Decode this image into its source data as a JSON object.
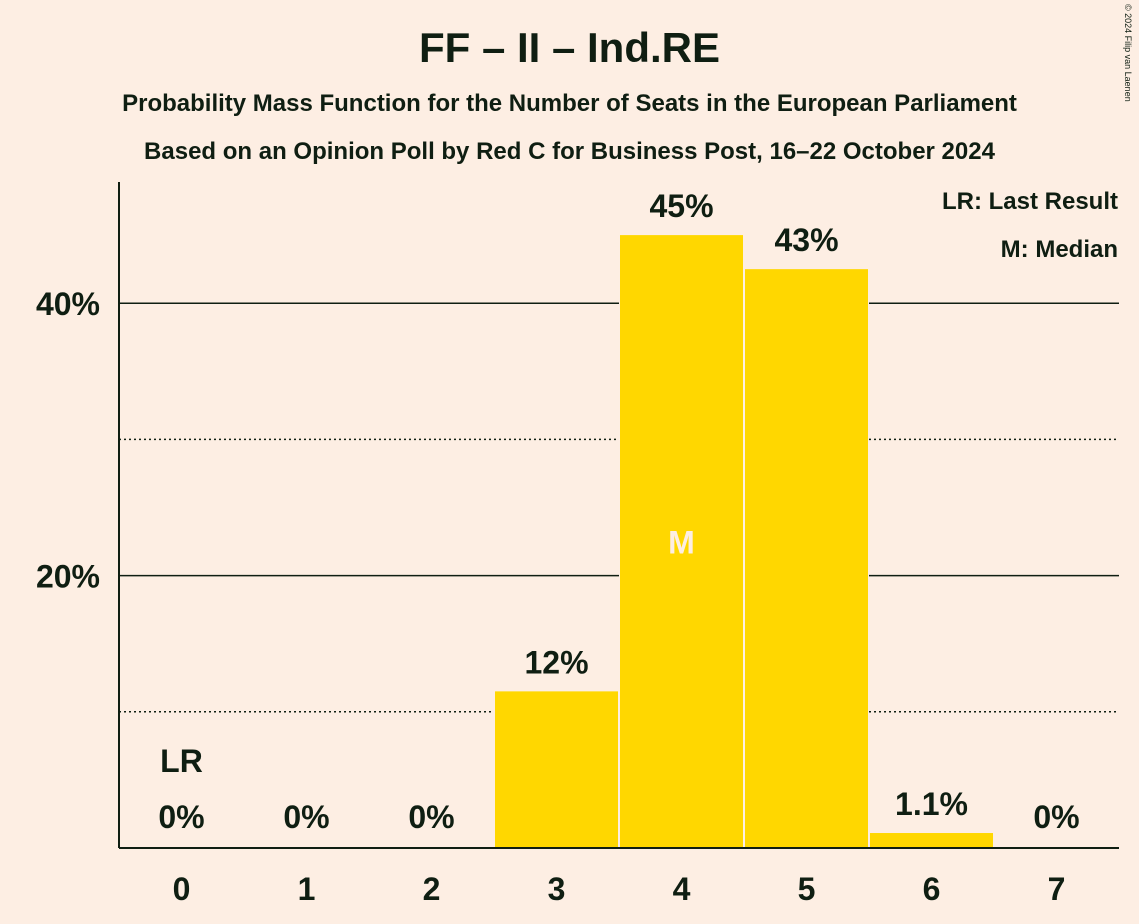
{
  "title": "FF – II – Ind.RE",
  "subtitle1": "Probability Mass Function for the Number of Seats in the European Parliament",
  "subtitle2": "Based on an Opinion Poll by Red C for Business Post, 16–22 October 2024",
  "copyright": "© 2024 Filip van Laenen",
  "legend": {
    "last_result": "LR: Last Result",
    "median": "M: Median"
  },
  "colors": {
    "background": "#FDEEE3",
    "bar": "#FFD700",
    "text": "#0F1E12",
    "median_marker": "#FDEEE3"
  },
  "chart_data": {
    "type": "bar",
    "categories": [
      "0",
      "1",
      "2",
      "3",
      "4",
      "5",
      "6",
      "7"
    ],
    "values": [
      0,
      0,
      0,
      11.5,
      45,
      42.5,
      1.1,
      0
    ],
    "data_labels": [
      "0%",
      "0%",
      "0%",
      "12%",
      "45%",
      "43%",
      "1.1%",
      "0%"
    ],
    "ylim": [
      0,
      49
    ],
    "yticks_major": [
      20,
      40
    ],
    "ytick_labels": [
      "20%",
      "40%"
    ],
    "yticks_minor": [
      10,
      30
    ],
    "last_result_category": "0",
    "last_result_label": "LR",
    "median_category": "4",
    "median_label": "M",
    "grid": true,
    "legend_position": "top-right"
  }
}
